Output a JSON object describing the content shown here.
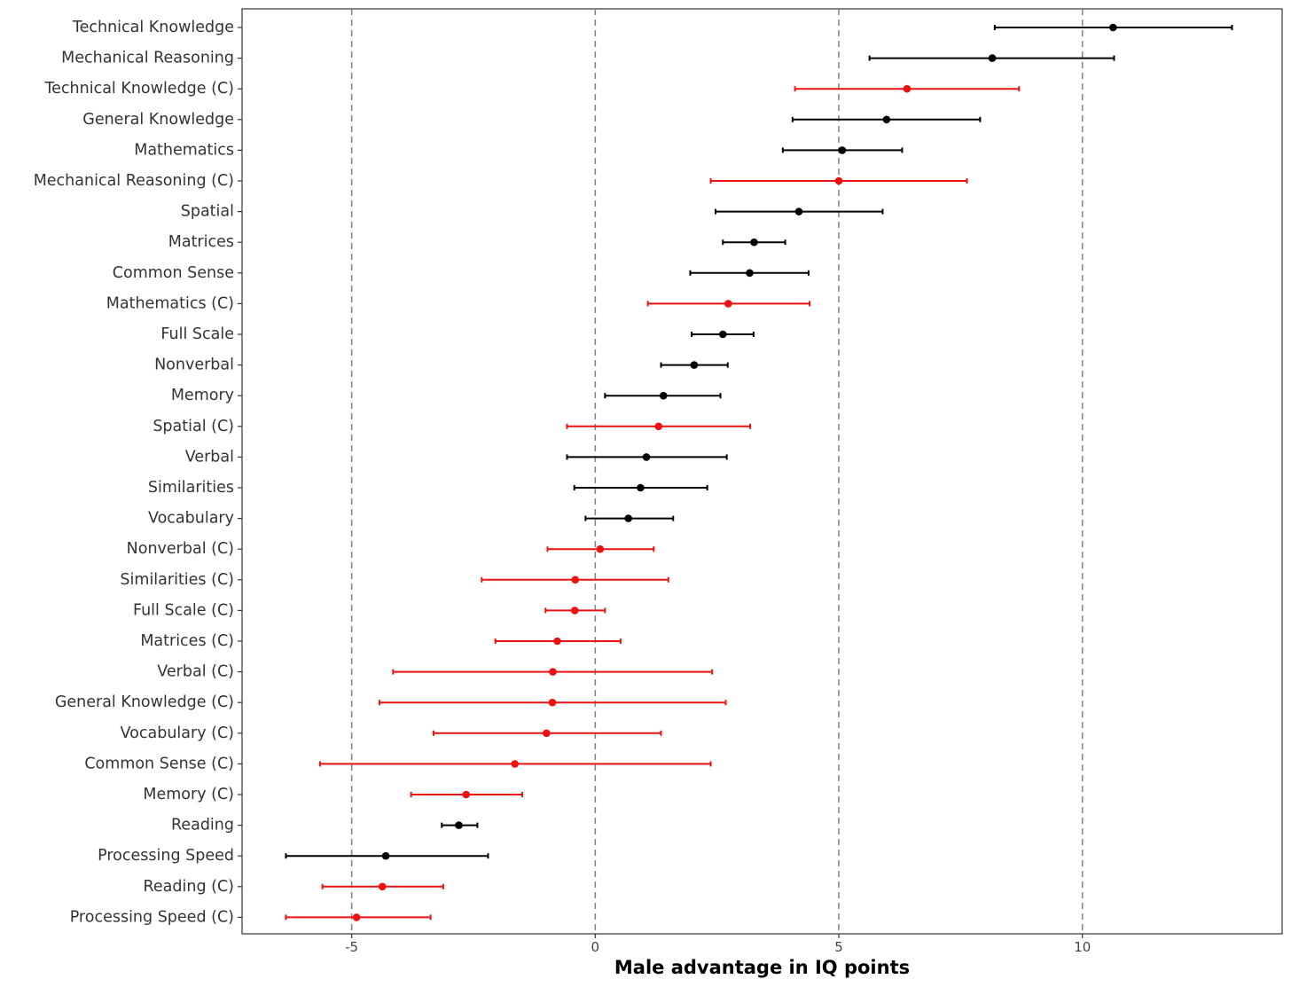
{
  "chart_data": {
    "type": "scatter",
    "xlabel": "Male advantage in IQ points",
    "xlim": [
      -7.25,
      14.1
    ],
    "xticks": [
      -5,
      0,
      5,
      10
    ],
    "xtick_labels": [
      "-5",
      "0",
      "5",
      "10"
    ],
    "reference_lines": [
      -5,
      0,
      5,
      10
    ],
    "grid": false,
    "colors": {
      "uncorrected": "#000000",
      "corrected": "#ee1111",
      "reference_line": "#888888"
    },
    "categories": [
      "Technical Knowledge",
      "Mechanical Reasoning",
      "Technical Knowledge (C)",
      "General Knowledge",
      "Mathematics",
      "Mechanical Reasoning (C)",
      "Spatial",
      "Matrices",
      "Common Sense",
      "Mathematics (C)",
      "Full Scale",
      "Nonverbal",
      "Memory",
      "Spatial (C)",
      "Verbal",
      "Similarities",
      "Vocabulary",
      "Nonverbal (C)",
      "Similarities (C)",
      "Full Scale (C)",
      "Matrices (C)",
      "Verbal (C)",
      "General Knowledge (C)",
      "Vocabulary (C)",
      "Common Sense (C)",
      "Memory (C)",
      "Reading",
      "Processing Speed",
      "Reading (C)",
      "Processing Speed (C)"
    ],
    "points": [
      {
        "label": "Technical Knowledge",
        "estimate": 10.63,
        "lower": 8.2,
        "upper": 13.07,
        "corrected": false
      },
      {
        "label": "Mechanical Reasoning",
        "estimate": 8.15,
        "lower": 5.63,
        "upper": 10.65,
        "corrected": false
      },
      {
        "label": "Technical Knowledge (C)",
        "estimate": 6.4,
        "lower": 4.1,
        "upper": 8.7,
        "corrected": true
      },
      {
        "label": "General Knowledge",
        "estimate": 5.98,
        "lower": 4.05,
        "upper": 7.9,
        "corrected": false
      },
      {
        "label": "Mathematics",
        "estimate": 5.07,
        "lower": 3.85,
        "upper": 6.3,
        "corrected": false
      },
      {
        "label": "Mechanical Reasoning (C)",
        "estimate": 5.0,
        "lower": 2.37,
        "upper": 7.63,
        "corrected": true
      },
      {
        "label": "Spatial",
        "estimate": 4.18,
        "lower": 2.47,
        "upper": 5.9,
        "corrected": false
      },
      {
        "label": "Matrices",
        "estimate": 3.26,
        "lower": 2.62,
        "upper": 3.9,
        "corrected": false
      },
      {
        "label": "Common Sense",
        "estimate": 3.17,
        "lower": 1.95,
        "upper": 4.38,
        "corrected": false
      },
      {
        "label": "Mathematics (C)",
        "estimate": 2.73,
        "lower": 1.08,
        "upper": 4.4,
        "corrected": true
      },
      {
        "label": "Full Scale",
        "estimate": 2.62,
        "lower": 1.98,
        "upper": 3.25,
        "corrected": false
      },
      {
        "label": "Nonverbal",
        "estimate": 2.03,
        "lower": 1.35,
        "upper": 2.72,
        "corrected": false
      },
      {
        "label": "Memory",
        "estimate": 1.4,
        "lower": 0.2,
        "upper": 2.57,
        "corrected": false
      },
      {
        "label": "Spatial (C)",
        "estimate": 1.3,
        "lower": -0.58,
        "upper": 3.18,
        "corrected": true
      },
      {
        "label": "Verbal",
        "estimate": 1.05,
        "lower": -0.58,
        "upper": 2.7,
        "corrected": false
      },
      {
        "label": "Similarities",
        "estimate": 0.93,
        "lower": -0.43,
        "upper": 2.3,
        "corrected": false
      },
      {
        "label": "Vocabulary",
        "estimate": 0.68,
        "lower": -0.2,
        "upper": 1.6,
        "corrected": false
      },
      {
        "label": "Nonverbal (C)",
        "estimate": 0.1,
        "lower": -0.98,
        "upper": 1.2,
        "corrected": true
      },
      {
        "label": "Similarities (C)",
        "estimate": -0.41,
        "lower": -2.33,
        "upper": 1.5,
        "corrected": true
      },
      {
        "label": "Full Scale (C)",
        "estimate": -0.42,
        "lower": -1.02,
        "upper": 0.2,
        "corrected": true
      },
      {
        "label": "Matrices (C)",
        "estimate": -0.78,
        "lower": -2.05,
        "upper": 0.52,
        "corrected": true
      },
      {
        "label": "Verbal (C)",
        "estimate": -0.87,
        "lower": -4.15,
        "upper": 2.4,
        "corrected": true
      },
      {
        "label": "General Knowledge (C)",
        "estimate": -0.88,
        "lower": -4.43,
        "upper": 2.68,
        "corrected": true
      },
      {
        "label": "Vocabulary (C)",
        "estimate": -1.0,
        "lower": -3.32,
        "upper": 1.35,
        "corrected": true
      },
      {
        "label": "Common Sense (C)",
        "estimate": -1.65,
        "lower": -5.65,
        "upper": 2.37,
        "corrected": true
      },
      {
        "label": "Memory (C)",
        "estimate": -2.65,
        "lower": -3.78,
        "upper": -1.5,
        "corrected": true
      },
      {
        "label": "Reading",
        "estimate": -2.8,
        "lower": -3.15,
        "upper": -2.42,
        "corrected": false
      },
      {
        "label": "Processing Speed",
        "estimate": -4.3,
        "lower": -6.35,
        "upper": -2.2,
        "corrected": false
      },
      {
        "label": "Reading (C)",
        "estimate": -4.37,
        "lower": -5.6,
        "upper": -3.12,
        "corrected": true
      },
      {
        "label": "Processing Speed (C)",
        "estimate": -4.9,
        "lower": -6.35,
        "upper": -3.38,
        "corrected": true
      }
    ]
  }
}
